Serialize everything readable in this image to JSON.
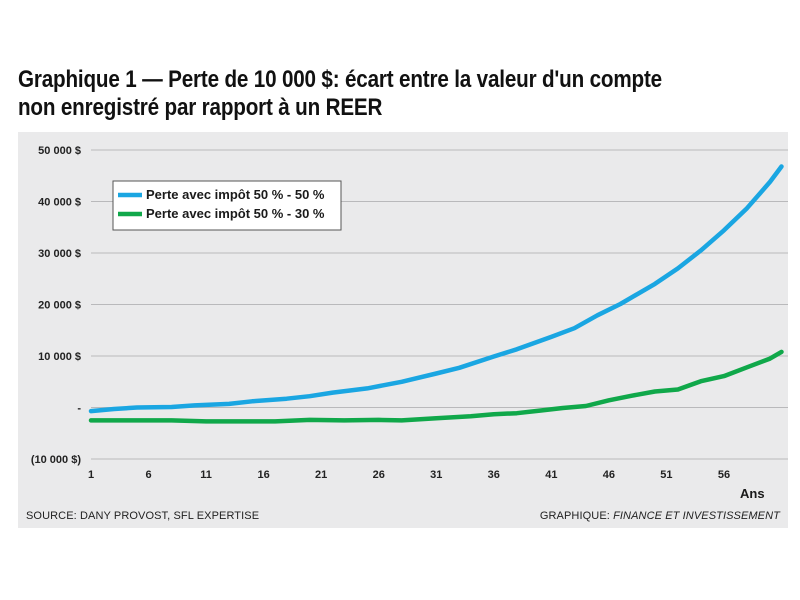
{
  "title_line1": "Graphique 1 — Perte de 10 000 $: écart entre la valeur d'un compte",
  "title_line2": "non enregistré par rapport à un REER",
  "source": "SOURCE: DANY PROVOST, SFL EXPERTISE",
  "credit_prefix": "GRAPHIQUE: ",
  "credit_name": "FINANCE ET INVESTISSEMENT",
  "chart_data": {
    "type": "line",
    "xlabel": "Ans",
    "ylabel": "",
    "xlim": [
      1,
      60
    ],
    "ylim": [
      -10000,
      50000
    ],
    "grid": true,
    "legend_position": "top-left",
    "x_ticks": [
      1,
      6,
      11,
      16,
      21,
      26,
      31,
      36,
      41,
      46,
      51,
      56
    ],
    "y_ticks": [
      {
        "value": 50000,
        "label": "50 000 $"
      },
      {
        "value": 40000,
        "label": "40 000 $"
      },
      {
        "value": 30000,
        "label": "30 000 $"
      },
      {
        "value": 20000,
        "label": "20 000 $"
      },
      {
        "value": 10000,
        "label": "10 000 $"
      },
      {
        "value": 0,
        "label": "-"
      },
      {
        "value": -10000,
        "label": "(10 000 $)"
      }
    ],
    "series": [
      {
        "name": "Perte avec impôt 50 % - 50 %",
        "color": "#1aa6e2",
        "points": [
          [
            1,
            -700
          ],
          [
            3,
            -300
          ],
          [
            5,
            0
          ],
          [
            8,
            100
          ],
          [
            10,
            400
          ],
          [
            13,
            700
          ],
          [
            15,
            1200
          ],
          [
            18,
            1700
          ],
          [
            20,
            2200
          ],
          [
            22,
            2900
          ],
          [
            25,
            3700
          ],
          [
            28,
            5000
          ],
          [
            31,
            6600
          ],
          [
            33,
            7700
          ],
          [
            36,
            9900
          ],
          [
            38,
            11300
          ],
          [
            41,
            13700
          ],
          [
            43,
            15400
          ],
          [
            45,
            17900
          ],
          [
            47,
            20100
          ],
          [
            50,
            24000
          ],
          [
            52,
            27000
          ],
          [
            54,
            30500
          ],
          [
            56,
            34400
          ],
          [
            58,
            38700
          ],
          [
            60,
            43800
          ],
          [
            61,
            46800
          ]
        ]
      },
      {
        "name": "Perte avec impôt 50 % - 30 %",
        "color": "#10a84a",
        "points": [
          [
            1,
            -2500
          ],
          [
            3,
            -2500
          ],
          [
            6,
            -2500
          ],
          [
            8,
            -2500
          ],
          [
            11,
            -2700
          ],
          [
            14,
            -2700
          ],
          [
            17,
            -2700
          ],
          [
            20,
            -2400
          ],
          [
            23,
            -2500
          ],
          [
            26,
            -2400
          ],
          [
            28,
            -2500
          ],
          [
            31,
            -2100
          ],
          [
            34,
            -1700
          ],
          [
            36,
            -1300
          ],
          [
            38,
            -1100
          ],
          [
            40,
            -600
          ],
          [
            42,
            -100
          ],
          [
            44,
            300
          ],
          [
            46,
            1400
          ],
          [
            48,
            2300
          ],
          [
            50,
            3100
          ],
          [
            52,
            3500
          ],
          [
            54,
            5100
          ],
          [
            56,
            6100
          ],
          [
            58,
            7800
          ],
          [
            60,
            9500
          ],
          [
            61,
            10800
          ]
        ]
      }
    ]
  }
}
